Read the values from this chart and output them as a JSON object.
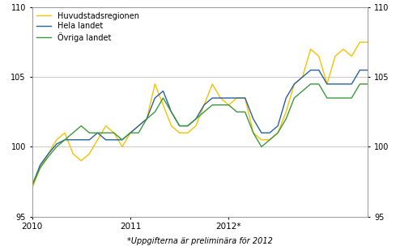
{
  "huvudstad": [
    97.0,
    98.5,
    99.5,
    100.5,
    101.0,
    99.5,
    99.0,
    99.5,
    100.5,
    101.5,
    101.0,
    100.0,
    101.0,
    101.5,
    102.0,
    104.5,
    103.0,
    101.5,
    101.0,
    101.0,
    101.5,
    103.0,
    104.5,
    103.5,
    103.0,
    103.5,
    103.5,
    101.0,
    100.5,
    100.5,
    101.0,
    102.5,
    104.5,
    105.0,
    107.0,
    106.5,
    104.5,
    106.5,
    107.0,
    106.5,
    107.5,
    107.5
  ],
  "hela": [
    97.2,
    98.7,
    99.5,
    100.2,
    100.5,
    100.5,
    100.5,
    100.5,
    101.0,
    100.5,
    100.5,
    100.5,
    101.0,
    101.5,
    102.0,
    103.5,
    104.0,
    102.5,
    101.5,
    101.5,
    102.0,
    103.0,
    103.5,
    103.5,
    103.5,
    103.5,
    103.5,
    102.0,
    101.0,
    101.0,
    101.5,
    103.5,
    104.5,
    105.0,
    105.5,
    105.5,
    104.5,
    104.5,
    104.5,
    104.5,
    105.5,
    105.5
  ],
  "ovriga": [
    97.2,
    98.5,
    99.3,
    100.0,
    100.5,
    101.0,
    101.5,
    101.0,
    101.0,
    101.0,
    101.0,
    100.5,
    101.0,
    101.0,
    102.0,
    102.5,
    103.5,
    102.5,
    101.5,
    101.5,
    102.0,
    102.5,
    103.0,
    103.0,
    103.0,
    102.5,
    102.5,
    101.0,
    100.0,
    100.5,
    101.0,
    102.0,
    103.5,
    104.0,
    104.5,
    104.5,
    103.5,
    103.5,
    103.5,
    103.5,
    104.5,
    104.5
  ],
  "color_huvudstad": "#F5C200",
  "color_hela": "#2860A0",
  "color_ovriga": "#3A9A3A",
  "ylim": [
    95,
    110
  ],
  "yticks": [
    95,
    100,
    105,
    110
  ],
  "legend_labels": [
    "Huvudstadsregionen",
    "Hela landet",
    "Övriga landet"
  ],
  "footnote": "*Uppgifterna är preliminära för 2012",
  "xtick_labels": [
    "2010",
    "2011",
    "2012*"
  ],
  "xtick_positions": [
    0,
    12,
    24
  ]
}
